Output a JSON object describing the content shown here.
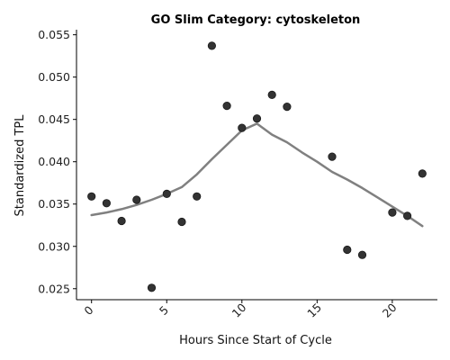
{
  "chart_data": {
    "type": "scatter",
    "title": "GO Slim Category: cytoskeleton",
    "xlabel": "Hours Since Start of Cycle",
    "ylabel": "Standardized TPL",
    "xlim": [
      -1,
      23
    ],
    "ylim": [
      0.0237,
      0.0556
    ],
    "x_ticks": [
      0,
      5,
      10,
      15,
      20
    ],
    "x_tick_labels": [
      "0",
      "5",
      "10",
      "15",
      "20"
    ],
    "y_ticks": [
      0.025,
      0.03,
      0.035,
      0.04,
      0.045,
      0.05,
      0.055
    ],
    "y_tick_labels": [
      "0.025",
      "0.030",
      "0.035",
      "0.040",
      "0.045",
      "0.050",
      "0.055"
    ],
    "grid": false,
    "series": [
      {
        "kind": "scatter",
        "color": "#333333",
        "points": [
          [
            0,
            0.0359
          ],
          [
            1,
            0.0351
          ],
          [
            2,
            0.033
          ],
          [
            3,
            0.0355
          ],
          [
            4,
            0.0251
          ],
          [
            5,
            0.0362
          ],
          [
            6,
            0.0329
          ],
          [
            7,
            0.0359
          ],
          [
            8,
            0.0537
          ],
          [
            9,
            0.0466
          ],
          [
            10,
            0.044
          ],
          [
            11,
            0.0451
          ],
          [
            12,
            0.0479
          ],
          [
            13,
            0.0465
          ],
          [
            16,
            0.0406
          ],
          [
            17,
            0.0296
          ],
          [
            18,
            0.029
          ],
          [
            20,
            0.034
          ],
          [
            21,
            0.0336
          ],
          [
            22,
            0.0386
          ]
        ]
      },
      {
        "kind": "line",
        "color": "#808080",
        "points": [
          [
            0,
            0.0337
          ],
          [
            1,
            0.034
          ],
          [
            2,
            0.0344
          ],
          [
            3,
            0.0349
          ],
          [
            4,
            0.0355
          ],
          [
            5,
            0.0362
          ],
          [
            6,
            0.037
          ],
          [
            7,
            0.0385
          ],
          [
            8,
            0.0403
          ],
          [
            9,
            0.042
          ],
          [
            10,
            0.0437
          ],
          [
            11,
            0.0445
          ],
          [
            12,
            0.0432
          ],
          [
            13,
            0.0423
          ],
          [
            14,
            0.0411
          ],
          [
            15,
            0.04
          ],
          [
            16,
            0.0388
          ],
          [
            17,
            0.0379
          ],
          [
            18,
            0.0369
          ],
          [
            19,
            0.0358
          ],
          [
            20,
            0.0347
          ],
          [
            21,
            0.0336
          ],
          [
            22,
            0.0324
          ]
        ]
      }
    ]
  }
}
